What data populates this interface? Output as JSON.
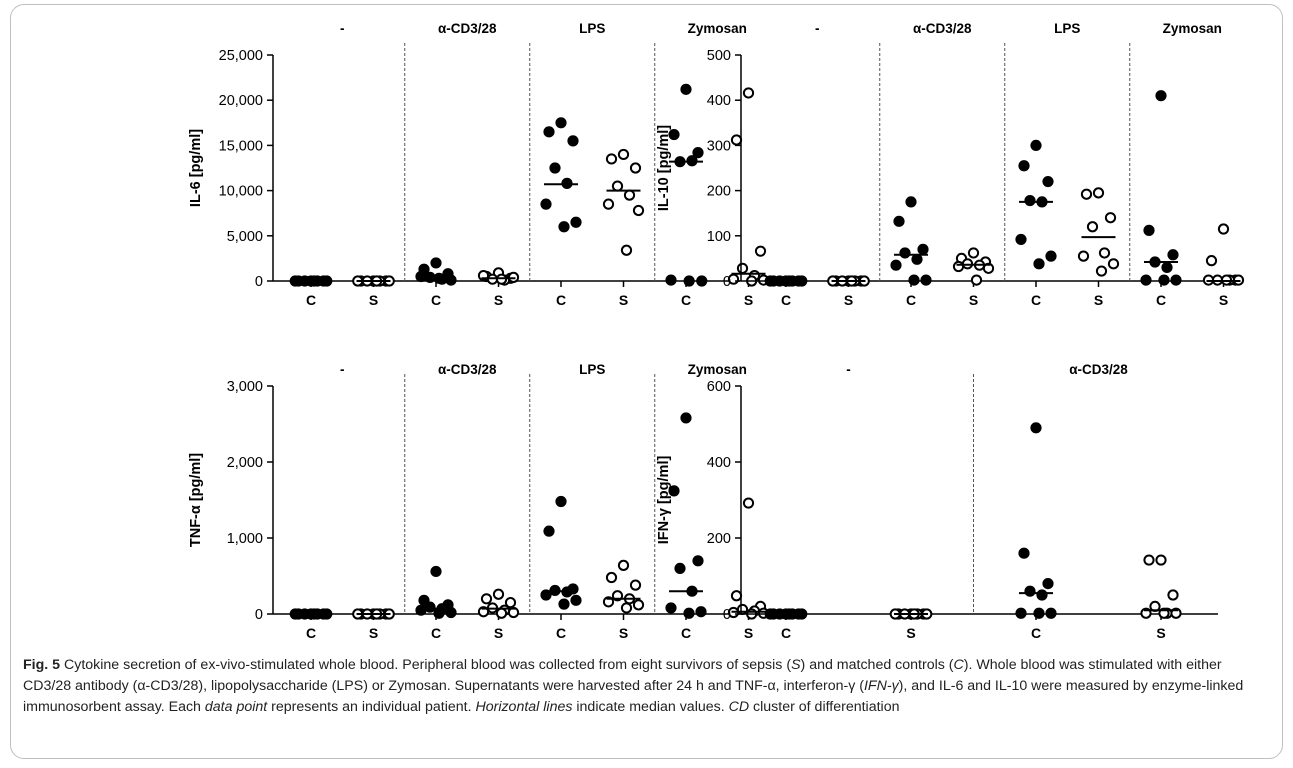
{
  "chart_data": [
    {
      "type": "scatter",
      "ylabel": "IL-6 [pg/ml]",
      "ylim": [
        0,
        25000
      ],
      "yticks": [
        "0",
        "5,000",
        "10,000",
        "15,000",
        "20,000",
        "25,000"
      ],
      "tick_values": [
        0,
        5000,
        10000,
        15000,
        20000,
        25000
      ],
      "groups": [
        "-",
        "α-CD3/28",
        "LPS",
        "Zymosan"
      ],
      "categories": [
        "C",
        "S",
        "C",
        "S",
        "C",
        "S",
        "C",
        "S"
      ],
      "points": [
        [
          0,
          0,
          0,
          0,
          0,
          0,
          0,
          0
        ],
        [
          0,
          0,
          0,
          0,
          0,
          0,
          0,
          0
        ],
        [
          2000,
          1300,
          800,
          400,
          200,
          500,
          100,
          300
        ],
        [
          900,
          500,
          300,
          200,
          100,
          600,
          400,
          200
        ],
        [
          17500,
          16500,
          15500,
          12500,
          10800,
          8500,
          6500,
          6000
        ],
        [
          14000,
          13500,
          12500,
          10500,
          9500,
          8500,
          7800,
          3400
        ],
        [
          21200,
          16200,
          14200,
          13200,
          13300,
          100,
          0,
          0
        ],
        [
          20800,
          15600,
          3300,
          1400,
          600,
          200,
          100,
          0
        ]
      ],
      "medians": [
        0,
        0,
        300,
        300,
        10700,
        10000,
        13200,
        800
      ],
      "grid": false
    },
    {
      "type": "scatter",
      "ylabel": "IL-10 [pg/ml]",
      "ylim": [
        0,
        500
      ],
      "yticks": [
        "0",
        "100",
        "200",
        "300",
        "400",
        "500"
      ],
      "tick_values": [
        0,
        100,
        200,
        300,
        400,
        500
      ],
      "groups": [
        "-",
        "α-CD3/28",
        "LPS",
        "Zymosan"
      ],
      "categories": [
        "C",
        "S",
        "C",
        "S",
        "C",
        "S",
        "C",
        "S"
      ],
      "points": [
        [
          0,
          0,
          0,
          0,
          0,
          0,
          0,
          0
        ],
        [
          0,
          0,
          0,
          0,
          0,
          0,
          0,
          0
        ],
        [
          175,
          132,
          70,
          62,
          48,
          35,
          2,
          2
        ],
        [
          62,
          50,
          42,
          38,
          35,
          32,
          28,
          2
        ],
        [
          300,
          255,
          220,
          178,
          175,
          92,
          55,
          38
        ],
        [
          195,
          192,
          140,
          120,
          62,
          55,
          38,
          22
        ],
        [
          410,
          112,
          58,
          42,
          30,
          2,
          2,
          2
        ],
        [
          115,
          45,
          2,
          2,
          2,
          2,
          2,
          2
        ]
      ],
      "medians": [
        0,
        0,
        58,
        36,
        175,
        97,
        42,
        0
      ],
      "grid": false
    },
    {
      "type": "scatter",
      "ylabel": "TNF-α [pg/ml]",
      "ylim": [
        0,
        3000
      ],
      "yticks": [
        "0",
        "1,000",
        "2,000",
        "3,000"
      ],
      "tick_values": [
        0,
        1000,
        2000,
        3000
      ],
      "groups": [
        "-",
        "α-CD3/28",
        "LPS",
        "Zymosan"
      ],
      "categories": [
        "C",
        "S",
        "C",
        "S",
        "C",
        "S",
        "C",
        "S"
      ],
      "points": [
        [
          0,
          0,
          0,
          0,
          0,
          0,
          0,
          0
        ],
        [
          0,
          0,
          0,
          0,
          0,
          0,
          0,
          0
        ],
        [
          560,
          180,
          120,
          90,
          70,
          50,
          20,
          10
        ],
        [
          260,
          200,
          150,
          80,
          50,
          30,
          20,
          10
        ],
        [
          1480,
          1090,
          330,
          310,
          290,
          250,
          180,
          130
        ],
        [
          640,
          480,
          380,
          240,
          200,
          160,
          120,
          80
        ],
        [
          2580,
          1620,
          700,
          600,
          300,
          80,
          30,
          10
        ],
        [
          1460,
          240,
          100,
          60,
          40,
          20,
          10,
          0
        ]
      ],
      "medians": [
        0,
        0,
        70,
        70,
        300,
        200,
        300,
        30
      ],
      "grid": false
    },
    {
      "type": "scatter",
      "ylabel": "IFN-γ [pg/ml]",
      "ylim": [
        0,
        600
      ],
      "yticks": [
        "0",
        "200",
        "400",
        "600"
      ],
      "tick_values": [
        0,
        200,
        400,
        600
      ],
      "groups": [
        "-",
        "α-CD3/28"
      ],
      "categories": [
        "C",
        "S",
        "C",
        "S"
      ],
      "points": [
        [
          0,
          0,
          0,
          0,
          0,
          0,
          0,
          0
        ],
        [
          0,
          0,
          0,
          0,
          0,
          0,
          0,
          0
        ],
        [
          490,
          160,
          80,
          60,
          50,
          2,
          2,
          2
        ],
        [
          142,
          142,
          50,
          20,
          2,
          2,
          2,
          2
        ]
      ],
      "medians": [
        0,
        0,
        55,
        10
      ],
      "grid": false
    }
  ],
  "caption": {
    "label": "Fig. 5",
    "parts": [
      " Cytokine secretion of ex-vivo-stimulated whole blood. Peripheral blood was collected from eight survivors of sepsis (",
      "S",
      ") and matched controls (",
      "C",
      "). Whole blood was stimulated with either CD3/28 antibody (α-CD3/28), lipopolysaccharide (LPS) or Zymosan. Supernatants were harvested after 24 h and TNF-α, interferon-γ (",
      "IFN-γ",
      "), and IL-6 and IL-10 were measured by enzyme-linked immunosorbent assay. Each ",
      "data point",
      " represents an individual patient. ",
      "Horizontal lines",
      " indicate median values. ",
      "CD",
      " cluster of differentiation"
    ]
  }
}
